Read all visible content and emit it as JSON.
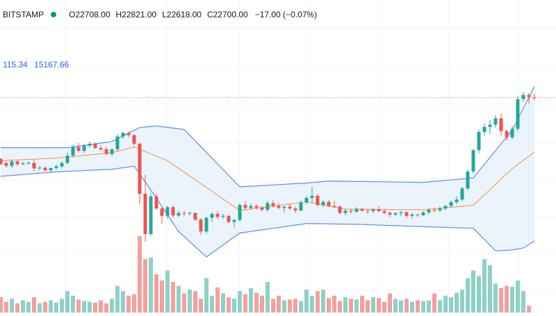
{
  "header": {
    "exchange": "BITSTAMP",
    "open": "O22708.00",
    "high": "H22821.00",
    "low": "L22618.00",
    "close": "C22700.00",
    "change": "−17.00 (−0.07%)"
  },
  "bb_legend": {
    "v1": "115.34",
    "v2": "15167.66"
  },
  "colors": {
    "up": "#26a69a",
    "down": "#ef5350",
    "up_volume": "#8ed1c6",
    "down_volume": "#f4a09e",
    "bb_band": "#5b8def",
    "bb_fill": "#e8f2fb",
    "bb_basis": "#f0a060",
    "grid": "#f0f3fa",
    "last_price_line": "#ef5350",
    "text_muted": "#2962ff",
    "status_dot": "#089981"
  },
  "chart_data": {
    "type": "candlestick",
    "title": "",
    "grid": true,
    "price_range": [
      17700,
      23800
    ],
    "candles_ohlc": [
      [
        20780,
        20800,
        20580,
        20610
      ],
      [
        20640,
        20700,
        20510,
        20560
      ],
      [
        20560,
        20760,
        20500,
        20700
      ],
      [
        20700,
        20720,
        20560,
        20610
      ],
      [
        20610,
        20680,
        20580,
        20640
      ],
      [
        20640,
        20700,
        20600,
        20650
      ],
      [
        20650,
        20760,
        20400,
        20480
      ],
      [
        20480,
        20560,
        20420,
        20500
      ],
      [
        20500,
        20540,
        20390,
        20420
      ],
      [
        20420,
        20500,
        20370,
        20490
      ],
      [
        20490,
        20600,
        20440,
        20540
      ],
      [
        20540,
        20700,
        20480,
        20650
      ],
      [
        20650,
        20980,
        20600,
        20880
      ],
      [
        20880,
        21230,
        20820,
        21150
      ],
      [
        21150,
        21280,
        20980,
        21030
      ],
      [
        21030,
        21260,
        20960,
        21190
      ],
      [
        21190,
        21320,
        21130,
        21250
      ],
      [
        21250,
        21300,
        21080,
        21120
      ],
      [
        21120,
        21200,
        21020,
        21080
      ],
      [
        21080,
        21150,
        20900,
        20930
      ],
      [
        20930,
        21100,
        20860,
        21080
      ],
      [
        21080,
        21550,
        21020,
        21480
      ],
      [
        21480,
        21640,
        21400,
        21590
      ],
      [
        21590,
        21650,
        21460,
        21520
      ],
      [
        21520,
        21560,
        21180,
        21250
      ],
      [
        21250,
        21280,
        19350,
        19680
      ],
      [
        19680,
        20280,
        18180,
        18420
      ],
      [
        18420,
        19720,
        18350,
        19600
      ],
      [
        19600,
        19680,
        19180,
        19220
      ],
      [
        19220,
        19280,
        18740,
        18990
      ],
      [
        18990,
        19300,
        18900,
        19260
      ],
      [
        19260,
        19310,
        18930,
        19000
      ],
      [
        19000,
        19140,
        18950,
        19080
      ],
      [
        19080,
        19140,
        18980,
        19060
      ],
      [
        19060,
        19120,
        19000,
        19080
      ],
      [
        19080,
        19100,
        18840,
        18870
      ],
      [
        18870,
        18920,
        18400,
        18500
      ],
      [
        18500,
        18960,
        18430,
        18930
      ],
      [
        18930,
        19100,
        18800,
        19050
      ],
      [
        19050,
        19150,
        18880,
        18960
      ],
      [
        18960,
        19050,
        18900,
        18990
      ],
      [
        18990,
        19020,
        18760,
        18800
      ],
      [
        18800,
        18900,
        18620,
        18860
      ],
      [
        18860,
        19380,
        18800,
        19330
      ],
      [
        19330,
        19450,
        19180,
        19240
      ],
      [
        19240,
        19390,
        19180,
        19300
      ],
      [
        19300,
        19350,
        19190,
        19250
      ],
      [
        19250,
        19300,
        19130,
        19180
      ],
      [
        19180,
        19450,
        19120,
        19390
      ],
      [
        19390,
        19480,
        19250,
        19300
      ],
      [
        19300,
        19400,
        19200,
        19240
      ],
      [
        19240,
        19300,
        19100,
        19280
      ],
      [
        19280,
        19360,
        19160,
        19220
      ],
      [
        19220,
        19280,
        19080,
        19160
      ],
      [
        19160,
        19470,
        19120,
        19410
      ],
      [
        19410,
        19600,
        19340,
        19550
      ],
      [
        19550,
        19900,
        19400,
        19620
      ],
      [
        19620,
        19680,
        19280,
        19330
      ],
      [
        19330,
        19480,
        19270,
        19430
      ],
      [
        19430,
        19480,
        19270,
        19300
      ],
      [
        19300,
        19460,
        19240,
        19280
      ],
      [
        19280,
        19330,
        19040,
        19080
      ],
      [
        19080,
        19200,
        19000,
        19150
      ],
      [
        19150,
        19220,
        19050,
        19120
      ],
      [
        19120,
        19260,
        19090,
        19210
      ],
      [
        19210,
        19240,
        19120,
        19150
      ],
      [
        19150,
        19210,
        19050,
        19140
      ],
      [
        19140,
        19230,
        19070,
        19190
      ],
      [
        19190,
        19300,
        19110,
        19140
      ],
      [
        19140,
        19200,
        19040,
        19080
      ],
      [
        19080,
        19140,
        18950,
        19030
      ],
      [
        19030,
        19110,
        18980,
        19070
      ],
      [
        19070,
        19150,
        18980,
        19100
      ],
      [
        19100,
        19140,
        18920,
        18990
      ],
      [
        18990,
        19100,
        18900,
        19030
      ],
      [
        19030,
        19060,
        18950,
        19010
      ],
      [
        19010,
        19140,
        18980,
        19100
      ],
      [
        19100,
        19220,
        19030,
        19180
      ],
      [
        19180,
        19250,
        19100,
        19160
      ],
      [
        19160,
        19280,
        19110,
        19220
      ],
      [
        19220,
        19330,
        19160,
        19300
      ],
      [
        19300,
        19480,
        19250,
        19420
      ],
      [
        19420,
        19600,
        19350,
        19500
      ],
      [
        19500,
        19900,
        19450,
        19850
      ],
      [
        19850,
        20450,
        19800,
        20380
      ],
      [
        20380,
        21100,
        20300,
        21050
      ],
      [
        21050,
        21700,
        20950,
        21620
      ],
      [
        21620,
        21900,
        21500,
        21780
      ],
      [
        21780,
        22000,
        21550,
        21850
      ],
      [
        21850,
        22150,
        21750,
        22050
      ],
      [
        22050,
        22200,
        21500,
        21650
      ],
      [
        21650,
        21700,
        21350,
        21450
      ],
      [
        21450,
        21800,
        21400,
        21720
      ],
      [
        21720,
        22750,
        21650,
        22650
      ],
      [
        22650,
        22880,
        22550,
        22780
      ],
      [
        22780,
        22850,
        22500,
        22720
      ],
      [
        22708,
        22821,
        22618,
        22700
      ]
    ],
    "bb_upper_knots": [
      [
        0,
        21130
      ],
      [
        12,
        21130
      ],
      [
        20,
        21320
      ],
      [
        25,
        21760
      ],
      [
        28,
        21810
      ],
      [
        33,
        21700
      ],
      [
        43,
        19900
      ],
      [
        55,
        20020
      ],
      [
        59,
        20080
      ],
      [
        76,
        20040
      ],
      [
        85,
        20180
      ],
      [
        92,
        21680
      ],
      [
        96,
        23050
      ]
    ],
    "bb_basis_knots": [
      [
        0,
        20720
      ],
      [
        10,
        20800
      ],
      [
        20,
        20970
      ],
      [
        24,
        21150
      ],
      [
        30,
        20720
      ],
      [
        43,
        19160
      ],
      [
        55,
        19430
      ],
      [
        62,
        19200
      ],
      [
        76,
        19180
      ],
      [
        85,
        19320
      ],
      [
        92,
        20470
      ],
      [
        96,
        20990
      ]
    ],
    "bb_lower_knots": [
      [
        0,
        20230
      ],
      [
        10,
        20370
      ],
      [
        20,
        20450
      ],
      [
        24,
        20550
      ],
      [
        27,
        19800
      ],
      [
        32,
        18500
      ],
      [
        37,
        17700
      ],
      [
        43,
        18450
      ],
      [
        55,
        18750
      ],
      [
        65,
        18720
      ],
      [
        76,
        18650
      ],
      [
        85,
        18600
      ],
      [
        89,
        17890
      ],
      [
        92,
        17920
      ],
      [
        94,
        17980
      ],
      [
        96,
        18200
      ]
    ],
    "volume": [
      20,
      14,
      18,
      12,
      16,
      14,
      20,
      12,
      14,
      16,
      13,
      18,
      28,
      22,
      17,
      15,
      14,
      13,
      16,
      12,
      18,
      35,
      28,
      22,
      24,
      100,
      70,
      72,
      50,
      42,
      55,
      40,
      35,
      25,
      30,
      28,
      18,
      45,
      22,
      33,
      25,
      20,
      18,
      28,
      24,
      32,
      26,
      22,
      40,
      18,
      22,
      16,
      17,
      18,
      15,
      30,
      22,
      28,
      30,
      19,
      22,
      15,
      20,
      18,
      17,
      22,
      16,
      20,
      19,
      14,
      25,
      18,
      16,
      18,
      14,
      16,
      15,
      16,
      25,
      16,
      22,
      20,
      26,
      30,
      45,
      55,
      48,
      70,
      62,
      38,
      32,
      35,
      34,
      42,
      28,
      9
    ]
  }
}
